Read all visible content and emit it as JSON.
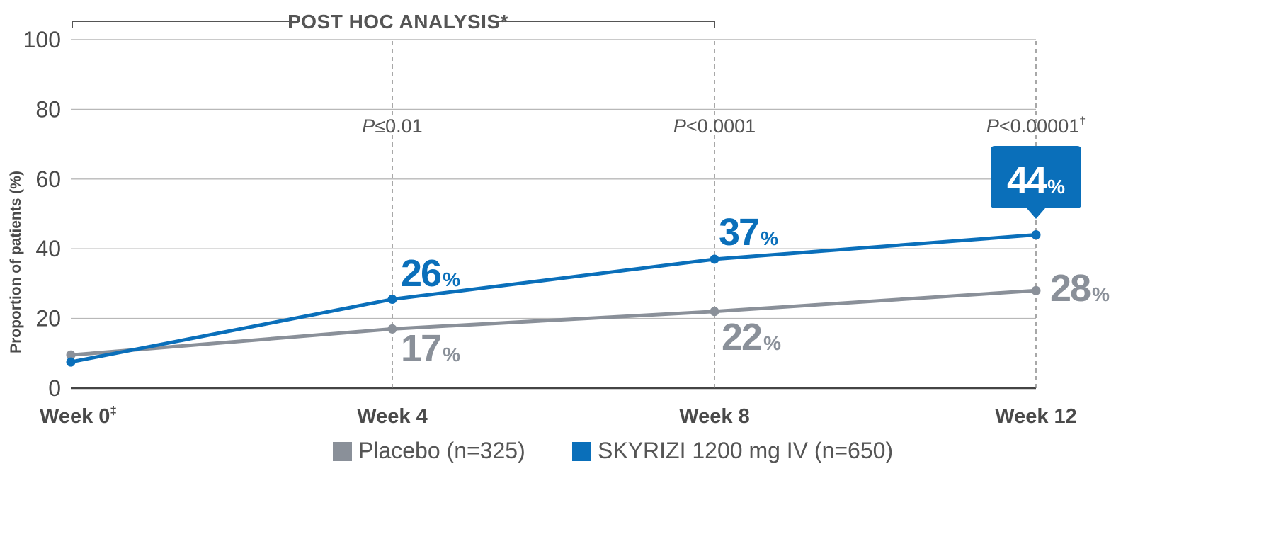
{
  "chart_data": {
    "type": "line",
    "header": "POST HOC ANALYSIS*",
    "ylabel": "Proportion of patients (%)",
    "ylim": [
      0,
      100
    ],
    "yticks": [
      0,
      20,
      40,
      60,
      80,
      100
    ],
    "categories": [
      "Week 0",
      "Week 4",
      "Week 8",
      "Week 12"
    ],
    "category_marks": [
      "‡",
      "",
      "",
      ""
    ],
    "pvalues": [
      {
        "category": "Week 4",
        "prefix": "P",
        "text": "≤0.01",
        "mark": ""
      },
      {
        "category": "Week 8",
        "prefix": "P",
        "text": "<0.0001",
        "mark": ""
      },
      {
        "category": "Week 12",
        "prefix": "P",
        "text": "<0.00001",
        "mark": "†"
      }
    ],
    "series": [
      {
        "name": "Placebo (n=325)",
        "color": "#8a9099",
        "values": [
          9.5,
          17,
          22,
          28
        ],
        "labels": [
          "",
          "17",
          "22",
          "28"
        ]
      },
      {
        "name": "SKYRIZI 1200 mg IV (n=650)",
        "color": "#0a6fba",
        "values": [
          7.5,
          25.5,
          37,
          44
        ],
        "labels": [
          "",
          "26",
          "37",
          "44"
        ]
      }
    ],
    "percent_sign": "%"
  }
}
